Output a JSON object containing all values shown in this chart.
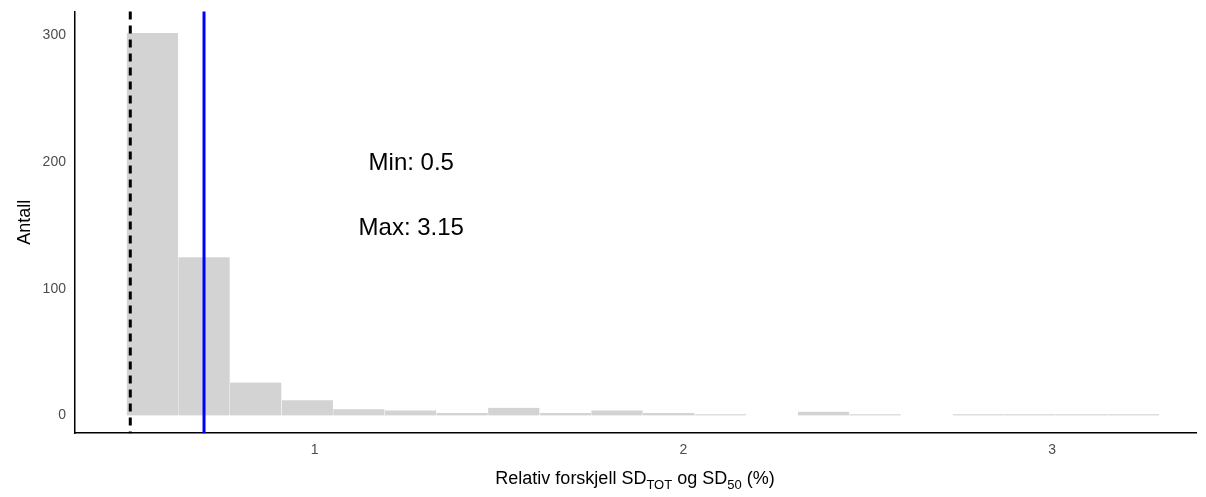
{
  "chart_data": {
    "type": "histogram",
    "xlabel": "Relativ forskjell SD$_{TOT}$ og SD$_{50}$ (%)",
    "ylabel": "Antall",
    "bins": [
      0.49,
      0.63,
      0.77,
      0.91,
      1.05,
      1.19,
      1.33,
      1.47,
      1.61,
      1.75,
      1.89,
      2.03,
      2.17,
      2.31,
      2.45,
      2.59,
      2.73,
      2.87,
      3.01,
      3.15,
      3.29
    ],
    "values": [
      302,
      125,
      26,
      12,
      5,
      4,
      2,
      6,
      2,
      4,
      2,
      1,
      0,
      3,
      1,
      0,
      1,
      1,
      1,
      1
    ],
    "color": "#d3d3d3",
    "xlim": [
      0.35,
      3.39
    ],
    "xticks": [
      1,
      2,
      3
    ],
    "ylim": [
      -14,
      319
    ],
    "yticks": [
      0,
      100,
      200,
      300
    ],
    "ref_lines": [
      {
        "axis": "x",
        "value": 0.5,
        "color": "#000000",
        "line_style": "dashed"
      },
      {
        "axis": "x",
        "value": 0.7,
        "color": "#0000ff",
        "line_style": "solid"
      }
    ],
    "annotations": [
      "Min: 0.5",
      "Max: 3.15"
    ],
    "grid": false,
    "legend": false
  }
}
